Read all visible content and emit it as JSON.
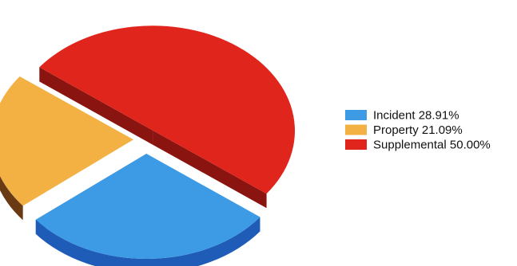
{
  "chart_data": {
    "type": "pie",
    "style": "3d-exploded",
    "title": "",
    "slices": [
      {
        "label": "Incident",
        "value": 28.91,
        "percent_label": "28.91%",
        "color": "#3d9be6",
        "side_color": "#1f5cb8"
      },
      {
        "label": "Property",
        "value": 21.09,
        "percent_label": "21.09%",
        "color": "#f3b043",
        "side_color": "#6a3a14"
      },
      {
        "label": "Supplemental",
        "value": 50.0,
        "percent_label": "50.00%",
        "color": "#e0261c",
        "side_color": "#8a1410"
      }
    ],
    "legend_position": "right"
  }
}
